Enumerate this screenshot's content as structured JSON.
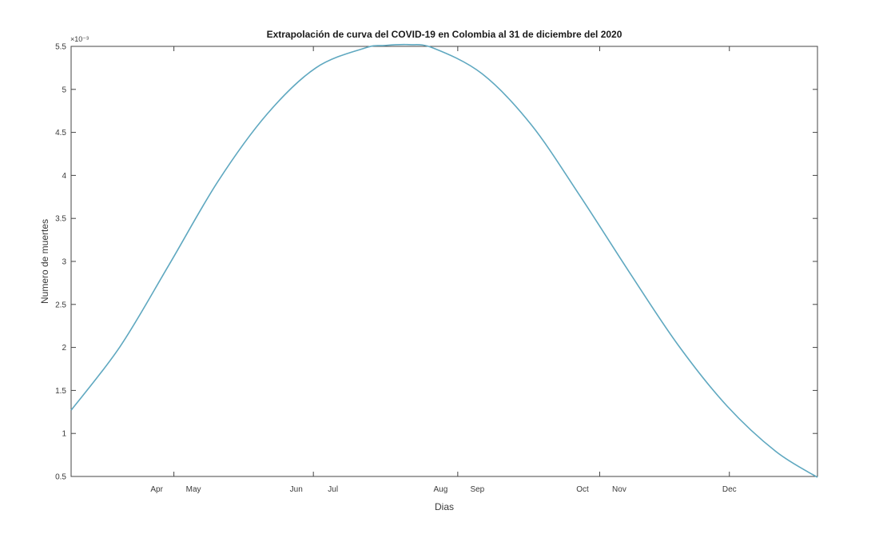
{
  "chart_data": {
    "type": "line",
    "title": "Extrapolación de curva del COVID-19 en Colombia al 31 de diciembre del 2020",
    "xlabel": "Dias",
    "ylabel": "Numero de muertes",
    "y_exponent_label": "×10⁻³",
    "xlim": [
      "2020-03-01",
      "2020-12-31"
    ],
    "ylim": [
      0.5,
      5.5
    ],
    "y_ticks": [
      0.5,
      1,
      1.5,
      2,
      2.5,
      3,
      3.5,
      4,
      4.5,
      5,
      5.5
    ],
    "y_tick_labels": [
      "0.5",
      "1",
      "1.5",
      "2",
      "2.5",
      "3",
      "3.5",
      "4",
      "4.5",
      "5",
      "5.5"
    ],
    "x_ticks": [
      {
        "label": "Apr",
        "date": "2020-04-05"
      },
      {
        "label": "May",
        "date": "2020-04-20"
      },
      {
        "label": "Jun",
        "date": "2020-06-01"
      },
      {
        "label": "Jul",
        "date": "2020-06-16"
      },
      {
        "label": "Aug",
        "date": "2020-07-30"
      },
      {
        "label": "Sep",
        "date": "2020-08-14"
      },
      {
        "label": "Oct",
        "date": "2020-09-26"
      },
      {
        "label": "Nov",
        "date": "2020-10-11"
      },
      {
        "label": "Dec",
        "date": "2020-11-25"
      }
    ],
    "tick_marks": [
      "2020-04-12",
      "2020-06-08",
      "2020-08-06",
      "2020-10-03",
      "2020-11-25"
    ],
    "grid": false,
    "line_color": "#5fa8c0",
    "series": [
      {
        "x": [
          "2020-03-01",
          "2020-03-21",
          "2020-04-10",
          "2020-04-30",
          "2020-05-20",
          "2020-06-09",
          "2020-06-29",
          "2020-07-07",
          "2020-07-17",
          "2020-07-27",
          "2020-08-16",
          "2020-09-05",
          "2020-09-25",
          "2020-10-15",
          "2020-11-04",
          "2020-11-24",
          "2020-12-14",
          "2020-12-31"
        ],
        "y": [
          1.27,
          2.01,
          2.96,
          3.93,
          4.71,
          5.25,
          5.48,
          5.51,
          5.52,
          5.48,
          5.18,
          4.59,
          3.76,
          2.88,
          2.03,
          1.32,
          0.79,
          0.49
        ]
      }
    ]
  }
}
